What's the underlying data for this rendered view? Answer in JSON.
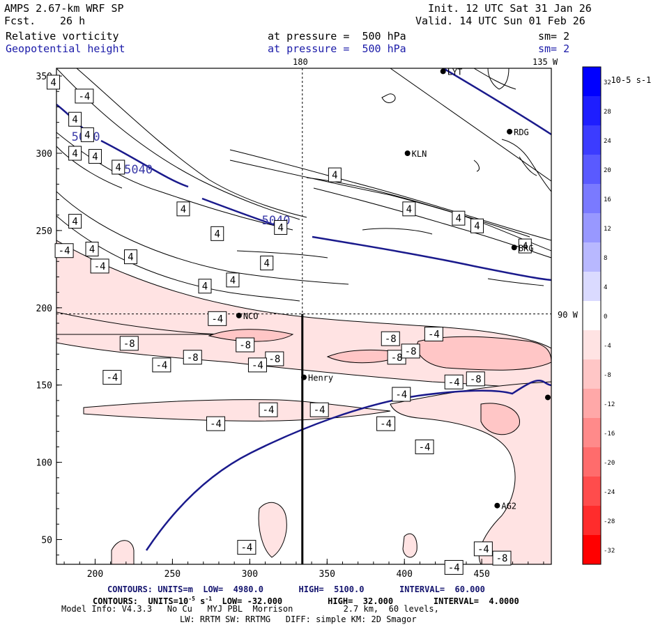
{
  "header": {
    "model": "AMPS 2.67-km WRF SP",
    "fcst_label": "Fcst.",
    "fcst_value": "26 h",
    "init": "Init. 12 UTC Sat 31 Jan 26",
    "valid": "Valid. 14 UTC Sun 01 Feb 26",
    "field1": "Relative vorticity",
    "field1_level": "at pressure =  500 hPa",
    "field1_sm": "sm= 2",
    "field2": "Geopotential height",
    "field2_level": "at pressure =  500 hPa",
    "field2_sm": "sm= 2"
  },
  "map": {
    "x_ticks": [
      "200",
      "250",
      "300",
      "350",
      "400",
      "450"
    ],
    "y_ticks": [
      "350",
      "300",
      "250",
      "200",
      "150",
      "100",
      "50"
    ],
    "xlim": [
      175,
      495
    ],
    "ylim": [
      34,
      355
    ],
    "meridian_label": "180",
    "corner_label": "135 W",
    "parallel_label": "90 W",
    "meridian_x": 334,
    "parallel_y": 196,
    "cross_section": {
      "x": 334,
      "y_from": 34,
      "y_to": 196
    },
    "height_contour_label": "5040",
    "stations": [
      {
        "name": "LYT",
        "x": 425,
        "y": 353
      },
      {
        "name": "RDG",
        "x": 468,
        "y": 314
      },
      {
        "name": "KLN",
        "x": 402,
        "y": 300
      },
      {
        "name": "BRG",
        "x": 471,
        "y": 239
      },
      {
        "name": "NCO",
        "x": 293,
        "y": 195
      },
      {
        "name": "Henry",
        "x": 335,
        "y": 155
      },
      {
        "name": "AG2",
        "x": 460,
        "y": 72
      }
    ],
    "vorticity_labels": [
      {
        "v": "4",
        "x": 173,
        "y": 346
      },
      {
        "v": "-4",
        "x": 193,
        "y": 337
      },
      {
        "v": "4",
        "x": 187,
        "y": 322
      },
      {
        "v": "4",
        "x": 195,
        "y": 312
      },
      {
        "v": "4",
        "x": 187,
        "y": 300
      },
      {
        "v": "4",
        "x": 200,
        "y": 298
      },
      {
        "v": "4",
        "x": 215,
        "y": 291
      },
      {
        "v": "4",
        "x": 187,
        "y": 256
      },
      {
        "v": "-4",
        "x": 180,
        "y": 237
      },
      {
        "v": "4",
        "x": 198,
        "y": 238
      },
      {
        "v": "-4",
        "x": 203,
        "y": 227
      },
      {
        "v": "4",
        "x": 223,
        "y": 233
      },
      {
        "v": "4",
        "x": 257,
        "y": 264
      },
      {
        "v": "4",
        "x": 279,
        "y": 248
      },
      {
        "v": "4",
        "x": 271,
        "y": 214
      },
      {
        "v": "4",
        "x": 289,
        "y": 218
      },
      {
        "v": "4",
        "x": 311,
        "y": 229
      },
      {
        "v": "4",
        "x": 320,
        "y": 252
      },
      {
        "v": "-4",
        "x": 279,
        "y": 193
      },
      {
        "v": "-8",
        "x": 222,
        "y": 177
      },
      {
        "v": "-8",
        "x": 297,
        "y": 176
      },
      {
        "v": "-8",
        "x": 316,
        "y": 167
      },
      {
        "v": "-4",
        "x": 243,
        "y": 163
      },
      {
        "v": "-8",
        "x": 263,
        "y": 168
      },
      {
        "v": "-4",
        "x": 305,
        "y": 163
      },
      {
        "v": "-4",
        "x": 211,
        "y": 155
      },
      {
        "v": "-8",
        "x": 391,
        "y": 180
      },
      {
        "v": "-4",
        "x": 419,
        "y": 183
      },
      {
        "v": "-8",
        "x": 395,
        "y": 168
      },
      {
        "v": "-8",
        "x": 404,
        "y": 172
      },
      {
        "v": "-4",
        "x": 432,
        "y": 152
      },
      {
        "v": "-8",
        "x": 446,
        "y": 154
      },
      {
        "v": "-4",
        "x": 398,
        "y": 144
      },
      {
        "v": "-4",
        "x": 345,
        "y": 134
      },
      {
        "v": "-4",
        "x": 312,
        "y": 134
      },
      {
        "v": "-4",
        "x": 278,
        "y": 125
      },
      {
        "v": "-4",
        "x": 388,
        "y": 125
      },
      {
        "v": "-4",
        "x": 413,
        "y": 110
      },
      {
        "v": "4",
        "x": 355,
        "y": 286
      },
      {
        "v": "4",
        "x": 403,
        "y": 264
      },
      {
        "v": "4",
        "x": 435,
        "y": 258
      },
      {
        "v": "4",
        "x": 447,
        "y": 253
      },
      {
        "v": "4",
        "x": 478,
        "y": 240
      },
      {
        "v": "-4",
        "x": 298,
        "y": 45
      },
      {
        "v": "-4",
        "x": 451,
        "y": 44
      },
      {
        "v": "-8",
        "x": 463,
        "y": 38
      },
      {
        "v": "-4",
        "x": 432,
        "y": 32
      }
    ]
  },
  "colorbar": {
    "title": "10-5 s-1",
    "labels": [
      "32",
      "28",
      "24",
      "20",
      "16",
      "12",
      "8",
      "4",
      "0",
      "-4",
      "-8",
      "-12",
      "-16",
      "-20",
      "-24",
      "-28",
      "-32"
    ],
    "colors": [
      "#0000ff",
      "#1e1eff",
      "#3c3cff",
      "#5a5aff",
      "#7a7aff",
      "#9898ff",
      "#b8b8ff",
      "#dadaff",
      "#ffffff",
      "#ffe3e3",
      "#ffc6c6",
      "#ffa8a8",
      "#ff8a8a",
      "#ff6c6c",
      "#ff4c4c",
      "#ff2c2c",
      "#ff0000"
    ],
    "range": [
      -32,
      32
    ]
  },
  "footer": {
    "height_contours": "CONTOURS: UNITS=m  LOW=  4980.0       HIGH=  5100.0       INTERVAL=  60.000",
    "vort_contours_a": "CONTOURS:  UNITS=10",
    "vort_contours_b": "-5",
    "vort_contours_c": " s",
    "vort_contours_d": "-1",
    "vort_contours_e": "  LOW= -32.000         HIGH=  32.000        INTERVAL=  4.0000",
    "model_info": "Model Info: V4.3.3   No Cu   MYJ PBL  Morrison          2.7 km,  60 levels,",
    "model_info2": "LW: RRTM SW: RRTMG   DIFF: simple KM: 2D Smagor"
  }
}
